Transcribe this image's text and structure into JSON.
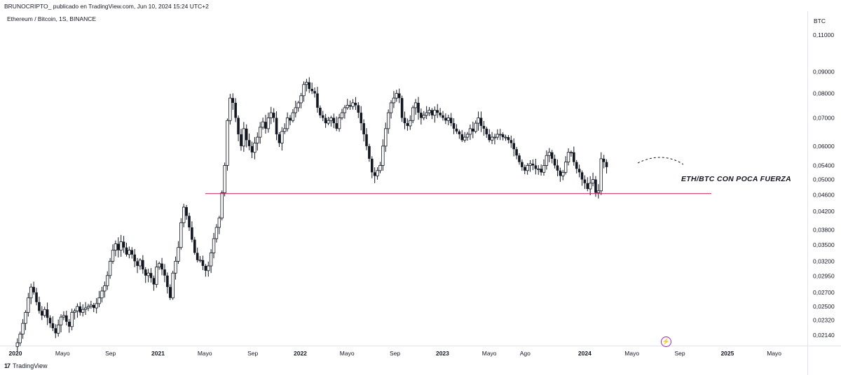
{
  "header": {
    "text": "BRUNOCRIPTO_ publicado en TradingView.com, Jun 10, 2024 15:24 UTC+2",
    "symbol": "Ethereum / Bitcoin, 1S, BINANCE"
  },
  "footer": {
    "logo_mark": "17",
    "brand": "TradingView"
  },
  "colors": {
    "candle": "#131722",
    "support_line": "#c2185b",
    "grid_border": "#e0e3eb",
    "flash": "#9c27b0"
  },
  "icons": {
    "flash": "lightning-icon"
  },
  "chart_data": {
    "type": "candlestick",
    "title": "",
    "price_unit": "BTC",
    "y_scale": "log",
    "ylim": [
      0.0205,
      0.117
    ],
    "y_ticks": [
      0.11,
      0.09,
      0.08,
      0.07,
      0.06,
      0.054,
      0.05,
      0.046,
      0.042,
      0.038,
      0.035,
      0.032,
      0.0295,
      0.027,
      0.025,
      0.0232,
      0.0214
    ],
    "y_tick_labels": [
      "0,11000",
      "0,09000",
      "0,08000",
      "0,07000",
      "0,06000",
      "0,05400",
      "0,05000",
      "0,04600",
      "0,04200",
      "0,03800",
      "0,03500",
      "0,03200",
      "0,02950",
      "0,02700",
      "0,02500",
      "0,02320",
      "0,02140"
    ],
    "x_range": [
      "2020-01-01",
      "2025-06-30"
    ],
    "x_ticks": [
      {
        "date": "2020-01-01",
        "label": "2020",
        "year": true
      },
      {
        "date": "2020-05-01",
        "label": "Mayo",
        "year": false
      },
      {
        "date": "2020-09-01",
        "label": "Sep",
        "year": false
      },
      {
        "date": "2021-01-01",
        "label": "2021",
        "year": true
      },
      {
        "date": "2021-05-01",
        "label": "Mayo",
        "year": false
      },
      {
        "date": "2021-09-01",
        "label": "Sep",
        "year": false
      },
      {
        "date": "2022-01-01",
        "label": "2022",
        "year": true
      },
      {
        "date": "2022-05-01",
        "label": "Mayo",
        "year": false
      },
      {
        "date": "2022-09-01",
        "label": "Sep",
        "year": false
      },
      {
        "date": "2023-01-01",
        "label": "2023",
        "year": true
      },
      {
        "date": "2023-05-01",
        "label": "Mayo",
        "year": false
      },
      {
        "date": "2023-08-01",
        "label": "Ago",
        "year": false
      },
      {
        "date": "2024-01-01",
        "label": "2024",
        "year": true
      },
      {
        "date": "2024-05-01",
        "label": "Mayo",
        "year": false
      },
      {
        "date": "2024-09-01",
        "label": "Sep",
        "year": false
      },
      {
        "date": "2025-01-01",
        "label": "2025",
        "year": true
      },
      {
        "date": "2025-05-01",
        "label": "Mayo",
        "year": false
      }
    ],
    "closes_start_date": "2020-01-06",
    "interval_days": 7,
    "weekly_closes": [
      0.0205,
      0.0215,
      0.0228,
      0.0242,
      0.0262,
      0.0278,
      0.027,
      0.0256,
      0.0244,
      0.0238,
      0.0246,
      0.0235,
      0.0228,
      0.0222,
      0.0216,
      0.0226,
      0.0236,
      0.0238,
      0.023,
      0.0224,
      0.0242,
      0.0244,
      0.025,
      0.0242,
      0.0246,
      0.0248,
      0.025,
      0.0252,
      0.0248,
      0.0254,
      0.0262,
      0.0272,
      0.028,
      0.0296,
      0.032,
      0.034,
      0.0352,
      0.034,
      0.0356,
      0.0345,
      0.0332,
      0.034,
      0.0332,
      0.032,
      0.0312,
      0.0322,
      0.0306,
      0.0296,
      0.03,
      0.0292,
      0.0282,
      0.031,
      0.0316,
      0.0306,
      0.0296,
      0.0278,
      0.0262,
      0.03,
      0.032,
      0.0345,
      0.0395,
      0.043,
      0.041,
      0.0385,
      0.036,
      0.0335,
      0.0322,
      0.0322,
      0.0312,
      0.0304,
      0.0312,
      0.0335,
      0.0362,
      0.0385,
      0.0405,
      0.0465,
      0.054,
      0.069,
      0.078,
      0.076,
      0.07,
      0.064,
      0.06,
      0.066,
      0.062,
      0.06,
      0.058,
      0.061,
      0.063,
      0.0665,
      0.0685,
      0.066,
      0.07,
      0.072,
      0.07,
      0.064,
      0.061,
      0.065,
      0.066,
      0.07,
      0.069,
      0.072,
      0.074,
      0.076,
      0.079,
      0.084,
      0.085,
      0.082,
      0.081,
      0.08,
      0.074,
      0.071,
      0.07,
      0.068,
      0.069,
      0.07,
      0.068,
      0.066,
      0.07,
      0.072,
      0.074,
      0.075,
      0.0745,
      0.076,
      0.075,
      0.072,
      0.068,
      0.064,
      0.06,
      0.056,
      0.052,
      0.051,
      0.0525,
      0.054,
      0.06,
      0.066,
      0.072,
      0.076,
      0.078,
      0.08,
      0.078,
      0.07,
      0.068,
      0.067,
      0.069,
      0.074,
      0.076,
      0.072,
      0.07,
      0.071,
      0.072,
      0.073,
      0.071,
      0.073,
      0.072,
      0.071,
      0.07,
      0.069,
      0.07,
      0.068,
      0.066,
      0.065,
      0.064,
      0.062,
      0.063,
      0.064,
      0.066,
      0.065,
      0.068,
      0.07,
      0.067,
      0.066,
      0.064,
      0.062,
      0.063,
      0.063,
      0.064,
      0.064,
      0.063,
      0.063,
      0.062,
      0.061,
      0.059,
      0.057,
      0.055,
      0.0535,
      0.0525,
      0.054,
      0.0545,
      0.054,
      0.053,
      0.053,
      0.052,
      0.054,
      0.057,
      0.058,
      0.056,
      0.054,
      0.0525,
      0.051,
      0.052,
      0.055,
      0.058,
      0.058,
      0.055,
      0.053,
      0.052,
      0.05,
      0.049,
      0.0475,
      0.049,
      0.05,
      0.0465,
      0.047,
      0.056,
      0.055,
      0.0535
    ]
  },
  "annotation": {
    "text": "ETH/BTC CON POCA FUERZA"
  },
  "support_level": 0.0463
}
